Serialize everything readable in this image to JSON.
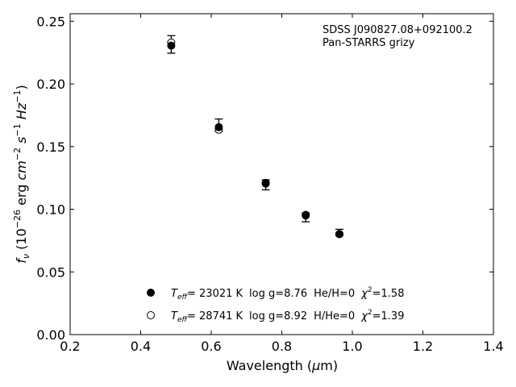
{
  "chart_data": {
    "type": "scatter",
    "title": "",
    "xlabel": "Wavelength (μm)",
    "ylabel": "f_ν (10^-26 erg cm^-2 s^-1 Hz^-1)",
    "xlim": [
      0.2,
      1.4
    ],
    "ylim": [
      0.0,
      0.256
    ],
    "xticks": [
      0.2,
      0.4,
      0.6,
      0.8,
      1.0,
      1.2,
      1.4
    ],
    "yticks": [
      0.0,
      0.05,
      0.1,
      0.15,
      0.2,
      0.25
    ],
    "xtick_labels": [
      "0.2",
      "0.4",
      "0.6",
      "0.8",
      "1.0",
      "1.2",
      "1.4"
    ],
    "ytick_labels": [
      "0.00",
      "0.05",
      "0.10",
      "0.15",
      "0.20",
      "0.25"
    ],
    "grid": false,
    "annotation": {
      "line1": "SDSS J090827.08+092100.2",
      "line2": "Pan-STARRS grizy"
    },
    "observed": {
      "x": [
        0.4866,
        0.6215,
        0.7545,
        0.8679,
        0.9633
      ],
      "y": [
        0.2315,
        0.167,
        0.1195,
        0.0935,
        0.0815
      ],
      "yerr": [
        0.007,
        0.005,
        0.004,
        0.0035,
        0.0025
      ]
    },
    "series": [
      {
        "marker": "filled-circle",
        "x": [
          0.4866,
          0.6215,
          0.7545,
          0.8679,
          0.9633
        ],
        "y": [
          0.2305,
          0.1655,
          0.1205,
          0.095,
          0.0802
        ]
      },
      {
        "marker": "open-circle",
        "x": [
          0.4866,
          0.6215,
          0.7545,
          0.8679,
          0.9633
        ],
        "y": [
          0.233,
          0.1635,
          0.121,
          0.0955,
          0.0802
        ]
      }
    ],
    "legend": {
      "placement": "bottom-center",
      "entries": [
        {
          "marker": "filled-circle",
          "teff": "= 23021 K",
          "logg": "log g=8.76",
          "comp": "He/H=0",
          "chi2": "=1.58"
        },
        {
          "marker": "open-circle",
          "teff": "= 28741 K",
          "logg": "log g=8.92",
          "comp": "H/He=0",
          "chi2": "=1.39"
        }
      ]
    }
  }
}
